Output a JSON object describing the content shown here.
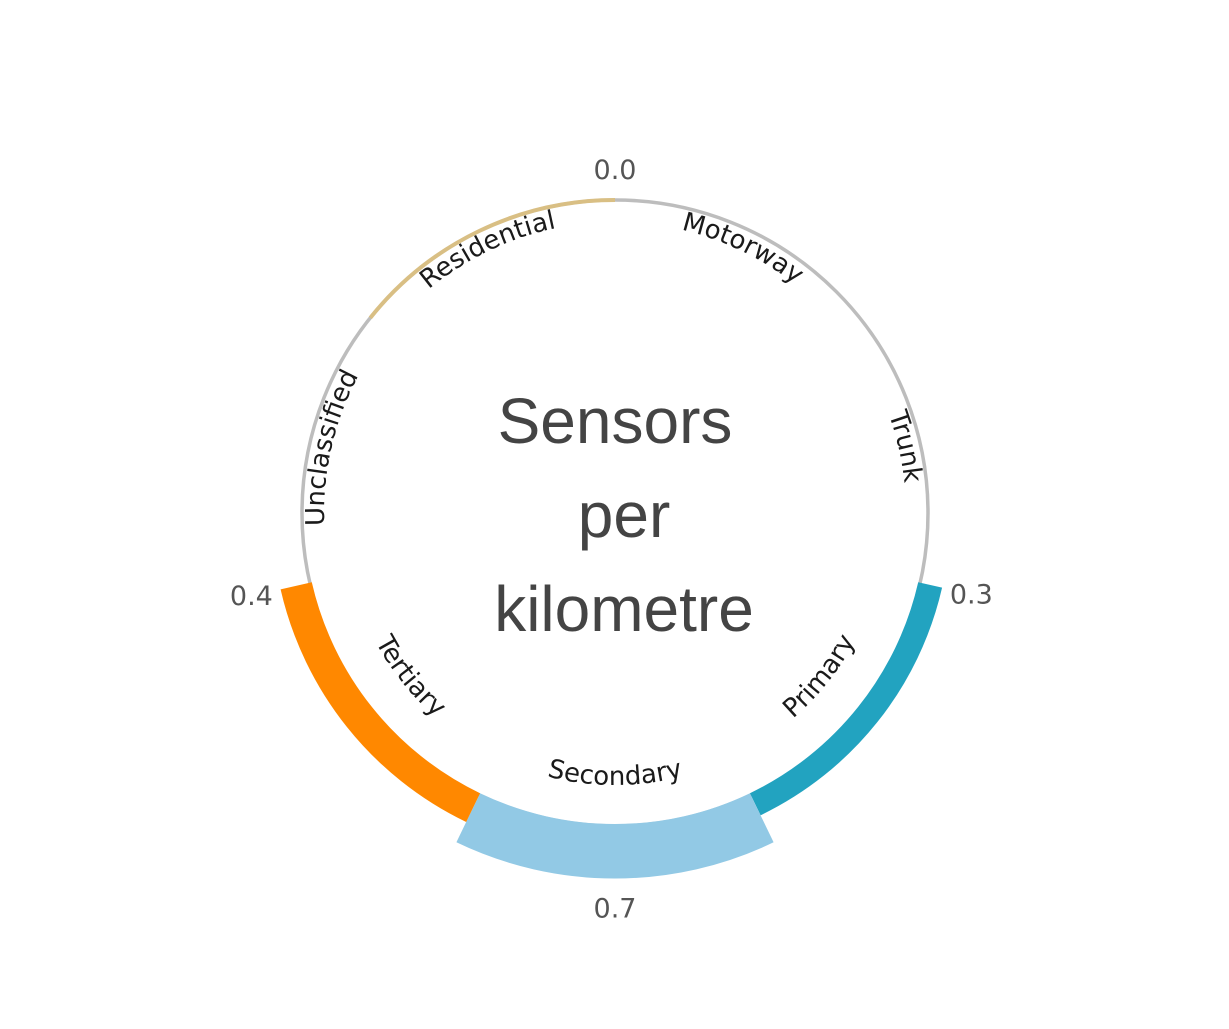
{
  "chart_data": {
    "type": "radial-bar",
    "title_lines": [
      "Sensors",
      "per",
      "kilometre"
    ],
    "categories": [
      "Motorway",
      "Trunk",
      "Primary",
      "Secondary",
      "Tertiary",
      "Unclassified",
      "Residential"
    ],
    "values": [
      null,
      null,
      0.3,
      0.7,
      0.4,
      null,
      0.0
    ],
    "value_labels": [
      "",
      "",
      "0.3",
      "0.7",
      "0.4",
      "",
      "0.0"
    ],
    "colors": [
      "#bdbdbd",
      "#bdbdbd",
      "#22a3c0",
      "#92c9e5",
      "#ff8800",
      "#bdbdbd",
      "#d9bf84"
    ],
    "base_color": "#bdbdbd"
  }
}
